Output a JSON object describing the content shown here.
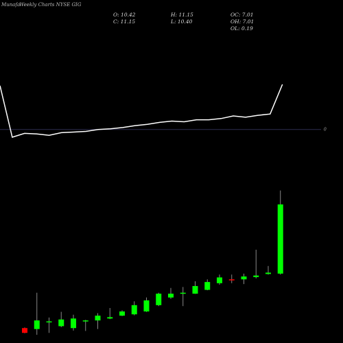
{
  "header": {
    "title_prefix": "Munafa",
    "title": "Weekly Charts NYSE GIG"
  },
  "stats": {
    "open": "O: 10.42",
    "high": "H: 11.15",
    "oc": "OC: 7.01",
    "close": "C: 11.15",
    "low": "L: 10.40",
    "oh": "OH: 7.01",
    "ol": "OL: 0.19"
  },
  "reference_line": {
    "label": "0"
  },
  "colors": {
    "up": "#00ff00",
    "down": "#ff0000",
    "line": "#ffffff",
    "ref": "#2e2e50",
    "background": "#000000"
  },
  "chart_data": [
    {
      "type": "line",
      "x": [
        0,
        1,
        2,
        3,
        4,
        5,
        6,
        7,
        8,
        9,
        10,
        11,
        12,
        13,
        14,
        15,
        16,
        17,
        18,
        19,
        20,
        21,
        22,
        23
      ],
      "series": [
        {
          "values": [
            10.2,
            6.2,
            6.5,
            6.45,
            6.35,
            6.55,
            6.6,
            6.65,
            6.8,
            6.85,
            6.95,
            7.1,
            7.2,
            7.35,
            7.45,
            7.4,
            7.55,
            7.55,
            7.65,
            7.85,
            7.75,
            7.9,
            8.0,
            10.3
          ]
        }
      ],
      "reference_value": 6.8
    },
    {
      "type": "candlestick",
      "x": [
        1,
        2,
        3,
        4,
        5,
        6,
        7,
        8,
        9,
        10,
        11,
        12,
        13,
        14,
        15,
        16,
        17,
        18,
        19,
        20,
        21,
        22
      ],
      "series": [
        {
          "open": [
            3.95,
            3.9,
            4.25,
            4.05,
            3.95,
            4.3,
            4.35,
            4.45,
            4.6,
            4.67,
            4.82,
            5.15,
            5.55,
            5.79,
            5.75,
            5.95,
            6.3,
            6.5,
            6.5,
            6.62,
            6.78,
            6.8
          ],
          "close": [
            3.7,
            4.35,
            4.3,
            4.4,
            4.45,
            4.35,
            4.6,
            4.52,
            4.82,
            5.15,
            5.4,
            5.75,
            5.75,
            5.8,
            6.15,
            6.36,
            6.6,
            6.45,
            6.65,
            6.7,
            6.85,
            10.42
          ],
          "high": [
            3.98,
            5.8,
            4.5,
            4.8,
            4.65,
            4.38,
            4.73,
            5.0,
            4.88,
            5.35,
            5.55,
            5.8,
            6.05,
            6.1,
            6.4,
            6.5,
            6.75,
            6.75,
            6.8,
            8.05,
            7.2,
            11.15
          ],
          "low": [
            3.68,
            3.6,
            3.7,
            4.0,
            3.82,
            3.8,
            3.9,
            4.42,
            4.58,
            4.62,
            4.8,
            5.1,
            5.48,
            5.1,
            5.74,
            5.93,
            6.22,
            6.3,
            6.25,
            6.55,
            6.75,
            6.75
          ]
        }
      ]
    }
  ]
}
